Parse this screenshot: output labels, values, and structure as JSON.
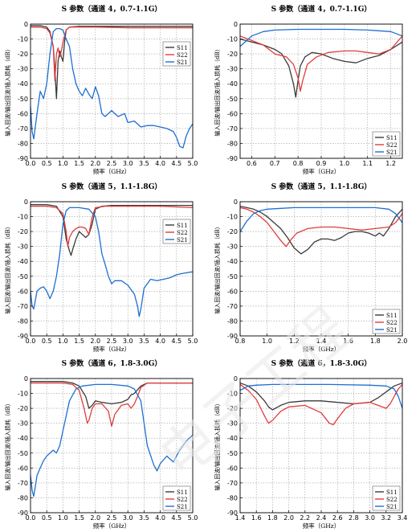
{
  "colors": {
    "S11": "#3a3a3a",
    "S22": "#e03c3c",
    "S21": "#1f6fd1",
    "grid": "#888888",
    "frame": "#000000"
  },
  "common": {
    "ylabel": "输入回波/输出回波/插入损耗（dB）",
    "xlabel": "频率（GHz）"
  },
  "watermark": "电子工程",
  "chart_data": [
    {
      "type": "line",
      "title": "S 参数（通道 4，0.7-1.1G）",
      "xlabel": "频率（GHz）",
      "ylabel": "输入回波/输出回波/插入损耗（dB）",
      "xlim": [
        0,
        5
      ],
      "ylim": [
        -90,
        0
      ],
      "xticks": [
        0,
        0.5,
        1,
        1.5,
        2,
        2.5,
        3,
        3.5,
        4,
        4.5,
        5
      ],
      "xtick_labels": [
        "0.0",
        "0.5",
        "1.0",
        "1.5",
        "2.0",
        "2.5",
        "3.0",
        "3.5",
        "4.0",
        "4.5",
        "5.0"
      ],
      "yticks": [
        -90,
        -80,
        -70,
        -60,
        -50,
        -40,
        -30,
        -20,
        -10,
        0
      ],
      "grid": true,
      "legend": "right",
      "series": [
        {
          "name": "S11",
          "x": [
            0,
            0.3,
            0.5,
            0.6,
            0.7,
            0.75,
            0.8,
            0.85,
            0.9,
            0.95,
            1.0,
            1.05,
            1.1,
            1.2,
            1.5,
            2,
            3,
            4,
            5
          ],
          "y": [
            -1,
            -1,
            -2,
            -5,
            -15,
            -30,
            -50,
            -25,
            -18,
            -22,
            -25,
            -12,
            -4,
            -2,
            -1.5,
            -1.5,
            -1.5,
            -1.5,
            -1.5
          ]
        },
        {
          "name": "S22",
          "x": [
            0,
            0.3,
            0.5,
            0.6,
            0.7,
            0.75,
            0.8,
            0.85,
            0.9,
            0.95,
            1.0,
            1.1,
            1.2,
            1.5,
            2,
            3,
            4,
            5
          ],
          "y": [
            -2,
            -2,
            -3,
            -6,
            -15,
            -38,
            -20,
            -16,
            -22,
            -18,
            -12,
            -4,
            -2,
            -2,
            -2,
            -2.5,
            -2.5,
            -2.5
          ]
        },
        {
          "name": "S21",
          "x": [
            0,
            0.05,
            0.1,
            0.2,
            0.3,
            0.4,
            0.5,
            0.6,
            0.7,
            0.8,
            0.9,
            1.0,
            1.1,
            1.2,
            1.3,
            1.4,
            1.5,
            1.6,
            1.7,
            1.8,
            1.9,
            2.0,
            2.1,
            2.2,
            2.3,
            2.5,
            2.7,
            2.9,
            3.0,
            3.2,
            3.4,
            3.6,
            3.8,
            4.0,
            4.2,
            4.4,
            4.5,
            4.6,
            4.7,
            4.8,
            4.9,
            5.0
          ],
          "y": [
            -55,
            -72,
            -77,
            -60,
            -45,
            -50,
            -40,
            -20,
            -5,
            -3,
            -3,
            -4,
            -10,
            -15,
            -30,
            -40,
            -45,
            -48,
            -43,
            -47,
            -50,
            -42,
            -48,
            -60,
            -62,
            -58,
            -62,
            -60,
            -66,
            -65,
            -69,
            -68,
            -68,
            -69,
            -70,
            -72,
            -76,
            -82,
            -83,
            -75,
            -70,
            -67
          ]
        }
      ]
    },
    {
      "type": "line",
      "title": "S 参数（通道 4，0.7-1.1G）",
      "xlabel": "频率（GHz）",
      "ylabel": "输入回波/输出回波/插入损耗（dB）",
      "xlim": [
        0.55,
        1.25
      ],
      "ylim": [
        -90,
        0
      ],
      "xticks": [
        0.6,
        0.7,
        0.8,
        0.9,
        1.0,
        1.1,
        1.2
      ],
      "xtick_labels": [
        "0.6",
        "0.7",
        "0.8",
        "0.9",
        "1.0",
        "1.1",
        "1.2"
      ],
      "yticks": [
        -90,
        -80,
        -70,
        -60,
        -50,
        -40,
        -30,
        -20,
        -10,
        0
      ],
      "grid": true,
      "legend": "bottom-right",
      "series": [
        {
          "name": "S11",
          "x": [
            0.55,
            0.6,
            0.65,
            0.7,
            0.73,
            0.76,
            0.78,
            0.79,
            0.8,
            0.81,
            0.83,
            0.86,
            0.9,
            0.95,
            1.0,
            1.05,
            1.1,
            1.15,
            1.2,
            1.25
          ],
          "y": [
            -10,
            -12,
            -14,
            -17,
            -20,
            -28,
            -40,
            -49,
            -38,
            -28,
            -22,
            -19,
            -20,
            -23,
            -25,
            -26,
            -23,
            -21,
            -17,
            -12
          ]
        },
        {
          "name": "S22",
          "x": [
            0.55,
            0.6,
            0.65,
            0.7,
            0.75,
            0.78,
            0.8,
            0.81,
            0.82,
            0.84,
            0.88,
            0.93,
            1.0,
            1.05,
            1.1,
            1.15,
            1.2,
            1.25
          ],
          "y": [
            -8,
            -11,
            -14,
            -20,
            -22,
            -27,
            -36,
            -45,
            -38,
            -27,
            -22,
            -19,
            -18,
            -18,
            -19,
            -20,
            -17,
            -8
          ]
        },
        {
          "name": "S21",
          "x": [
            0.55,
            0.6,
            0.65,
            0.7,
            0.8,
            0.9,
            1.0,
            1.1,
            1.15,
            1.2,
            1.25
          ],
          "y": [
            -15,
            -8,
            -5,
            -4,
            -3.5,
            -3.5,
            -3.5,
            -4,
            -4.5,
            -5,
            -8
          ]
        }
      ]
    },
    {
      "type": "line",
      "title": "S 参数（通道 5，1.1-1.8G）",
      "xlabel": "频率（GHz）",
      "ylabel": "输入回波/输出回波/插入损耗（dB）",
      "xlim": [
        0,
        5
      ],
      "ylim": [
        -90,
        0
      ],
      "xticks": [
        0,
        0.5,
        1,
        1.5,
        2,
        2.5,
        3,
        3.5,
        4,
        4.5,
        5
      ],
      "xtick_labels": [
        "0.0",
        "0.5",
        "1.0",
        "1.5",
        "2.0",
        "2.5",
        "3.0",
        "3.5",
        "4.0",
        "4.5",
        "5.0"
      ],
      "yticks": [
        -90,
        -80,
        -70,
        -60,
        -50,
        -40,
        -30,
        -20,
        -10,
        0
      ],
      "grid": true,
      "legend": "right",
      "series": [
        {
          "name": "S11",
          "x": [
            0,
            0.5,
            0.8,
            1.0,
            1.1,
            1.2,
            1.25,
            1.3,
            1.4,
            1.5,
            1.6,
            1.7,
            1.8,
            1.9,
            2.0,
            2.2,
            2.5,
            3,
            4,
            5
          ],
          "y": [
            -2,
            -2,
            -3,
            -10,
            -25,
            -33,
            -36,
            -32,
            -25,
            -20,
            -22,
            -24,
            -22,
            -15,
            -5,
            -3,
            -2.5,
            -2.5,
            -2.5,
            -2.5
          ]
        },
        {
          "name": "S22",
          "x": [
            0,
            0.5,
            0.8,
            1.0,
            1.1,
            1.15,
            1.2,
            1.3,
            1.4,
            1.5,
            1.6,
            1.7,
            1.8,
            1.9,
            2.0,
            2.3,
            2.5,
            3,
            4,
            5
          ],
          "y": [
            -3,
            -3,
            -4,
            -8,
            -20,
            -30,
            -24,
            -20,
            -18,
            -17,
            -17,
            -18,
            -22,
            -10,
            -4,
            -3,
            -3,
            -3,
            -3,
            -4
          ]
        },
        {
          "name": "S21",
          "x": [
            0,
            0.05,
            0.1,
            0.2,
            0.3,
            0.4,
            0.5,
            0.6,
            0.7,
            0.8,
            0.9,
            1.0,
            1.1,
            1.2,
            1.5,
            1.8,
            2.0,
            2.1,
            2.2,
            2.3,
            2.4,
            2.5,
            2.6,
            2.8,
            3.0,
            3.2,
            3.3,
            3.35,
            3.4,
            3.5,
            3.7,
            3.9,
            4.1,
            4.3,
            4.5,
            4.7,
            5.0
          ],
          "y": [
            -60,
            -70,
            -72,
            -60,
            -58,
            -57,
            -60,
            -65,
            -60,
            -50,
            -35,
            -15,
            -6,
            -4,
            -4,
            -5,
            -10,
            -20,
            -35,
            -42,
            -50,
            -55,
            -53,
            -53,
            -56,
            -62,
            -70,
            -77,
            -72,
            -58,
            -52,
            -53,
            -52,
            -51,
            -49,
            -48,
            -47
          ]
        }
      ]
    },
    {
      "type": "line",
      "title": "S 参数（通道 5，1.1-1.8G）",
      "xlabel": "频率（GHz）",
      "ylabel": "输入回波/输出回波/插入损耗（dB）",
      "xlim": [
        0.8,
        2.0
      ],
      "ylim": [
        -90,
        0
      ],
      "xticks": [
        0.8,
        1.0,
        1.2,
        1.4,
        1.6,
        1.8,
        2.0
      ],
      "xtick_labels": [
        "0.8",
        "1.0",
        "1.2",
        "1.4",
        "1.6",
        "1.8",
        "2.0"
      ],
      "yticks": [
        -90,
        -80,
        -70,
        -60,
        -50,
        -40,
        -30,
        -20,
        -10,
        0
      ],
      "grid": true,
      "legend": "bottom-right",
      "series": [
        {
          "name": "S11",
          "x": [
            0.8,
            0.85,
            0.9,
            0.95,
            1.0,
            1.05,
            1.1,
            1.15,
            1.2,
            1.25,
            1.3,
            1.35,
            1.4,
            1.45,
            1.5,
            1.55,
            1.6,
            1.65,
            1.7,
            1.75,
            1.8,
            1.83,
            1.86,
            1.9,
            1.95,
            2.0
          ],
          "y": [
            -3,
            -4,
            -5,
            -7,
            -10,
            -14,
            -18,
            -24,
            -31,
            -35,
            -32,
            -27,
            -25,
            -25,
            -26,
            -24,
            -21,
            -20,
            -20,
            -21,
            -23,
            -21,
            -23,
            -18,
            -10,
            -5
          ]
        },
        {
          "name": "S22",
          "x": [
            0.8,
            0.85,
            0.9,
            0.95,
            1.0,
            1.05,
            1.1,
            1.14,
            1.18,
            1.22,
            1.3,
            1.4,
            1.5,
            1.6,
            1.7,
            1.8,
            1.9,
            1.95,
            2.0
          ],
          "y": [
            -4,
            -5,
            -7,
            -10,
            -14,
            -20,
            -26,
            -30,
            -25,
            -21,
            -18,
            -17,
            -17,
            -18,
            -19,
            -18,
            -17,
            -14,
            -8
          ]
        },
        {
          "name": "S21",
          "x": [
            0.8,
            0.85,
            0.9,
            0.95,
            1.0,
            1.1,
            1.2,
            1.4,
            1.6,
            1.8,
            1.9,
            1.95,
            2.0
          ],
          "y": [
            -20,
            -13,
            -8,
            -6,
            -5,
            -4.5,
            -4,
            -4,
            -4,
            -4,
            -5,
            -8,
            -14
          ]
        }
      ]
    },
    {
      "type": "line",
      "title": "S 参数（通道 6，1.8-3.0G）",
      "xlabel": "频率（GHz）",
      "ylabel": "输入回波/输出回波/插入损耗（dB）",
      "xlim": [
        0,
        5
      ],
      "ylim": [
        -90,
        0
      ],
      "xticks": [
        0,
        0.5,
        1,
        1.5,
        2,
        2.5,
        3,
        3.5,
        4,
        4.5,
        5
      ],
      "xtick_labels": [
        "0.0",
        "0.5",
        "1.0",
        "1.5",
        "2.0",
        "2.5",
        "3.0",
        "3.5",
        "4.0",
        "4.5",
        "5.0"
      ],
      "yticks": [
        -90,
        -80,
        -70,
        -60,
        -50,
        -40,
        -30,
        -20,
        -10,
        0
      ],
      "grid": true,
      "legend": "bottom-right",
      "series": [
        {
          "name": "S11",
          "x": [
            0,
            0.5,
            1.0,
            1.3,
            1.5,
            1.7,
            1.8,
            1.9,
            2.0,
            2.2,
            2.5,
            2.8,
            3.0,
            3.1,
            3.2,
            3.4,
            3.6,
            4,
            5
          ],
          "y": [
            -2,
            -2,
            -2,
            -3,
            -5,
            -12,
            -20,
            -18,
            -15,
            -16,
            -17,
            -16,
            -14,
            -11,
            -10,
            -5,
            -3,
            -3,
            -3
          ]
        },
        {
          "name": "S22",
          "x": [
            0,
            0.5,
            1.0,
            1.3,
            1.5,
            1.65,
            1.75,
            1.8,
            1.9,
            2.0,
            2.2,
            2.4,
            2.5,
            2.6,
            2.8,
            3.0,
            3.1,
            3.2,
            3.3,
            3.4,
            3.6,
            4,
            5
          ],
          "y": [
            -3,
            -3,
            -3,
            -4,
            -8,
            -20,
            -30,
            -28,
            -20,
            -17,
            -17,
            -22,
            -32,
            -24,
            -18,
            -17,
            -20,
            -17,
            -12,
            -6,
            -3,
            -3,
            -3
          ]
        },
        {
          "name": "S21",
          "x": [
            0,
            0.05,
            0.1,
            0.15,
            0.2,
            0.3,
            0.4,
            0.5,
            0.6,
            0.7,
            0.8,
            0.9,
            1.0,
            1.2,
            1.4,
            1.6,
            2.0,
            2.5,
            3.0,
            3.2,
            3.4,
            3.5,
            3.6,
            3.8,
            3.9,
            4.0,
            4.2,
            4.4,
            4.6,
            4.8,
            5.0
          ],
          "y": [
            -65,
            -75,
            -79,
            -72,
            -65,
            -60,
            -55,
            -52,
            -50,
            -48,
            -50,
            -45,
            -35,
            -15,
            -7,
            -5,
            -4,
            -4,
            -5,
            -7,
            -15,
            -30,
            -45,
            -58,
            -62,
            -57,
            -52,
            -56,
            -48,
            -42,
            -38
          ]
        }
      ]
    },
    {
      "type": "line",
      "title": "S 参数（通道 6，1.8-3.0G）",
      "xlabel": "频率（GHz）",
      "ylabel": "输入回波/输出回波/插入损耗（dB）",
      "xlim": [
        1.4,
        3.4
      ],
      "ylim": [
        -90,
        0
      ],
      "xticks": [
        1.4,
        1.6,
        1.8,
        2.0,
        2.2,
        2.4,
        2.6,
        2.8,
        3.0,
        3.2,
        3.4
      ],
      "xtick_labels": [
        "1.4",
        "1.6",
        "1.8",
        "2.0",
        "2.2",
        "2.4",
        "2.6",
        "2.8",
        "3.0",
        "3.2",
        "3.4"
      ],
      "yticks": [
        -90,
        -80,
        -70,
        -60,
        -50,
        -40,
        -30,
        -20,
        -10,
        0
      ],
      "grid": true,
      "legend": "bottom-right",
      "series": [
        {
          "name": "S11",
          "x": [
            1.4,
            1.5,
            1.6,
            1.7,
            1.75,
            1.8,
            1.9,
            2.0,
            2.2,
            2.4,
            2.6,
            2.8,
            3.0,
            3.1,
            3.2,
            3.3,
            3.4
          ],
          "y": [
            -3,
            -5,
            -9,
            -15,
            -19,
            -21,
            -18,
            -16,
            -15,
            -15,
            -16,
            -17,
            -16,
            -13,
            -9,
            -5,
            -3
          ]
        },
        {
          "name": "S22",
          "x": [
            1.4,
            1.5,
            1.6,
            1.7,
            1.75,
            1.8,
            1.9,
            2.0,
            2.2,
            2.4,
            2.5,
            2.55,
            2.6,
            2.7,
            2.8,
            3.0,
            3.1,
            3.2,
            3.25,
            3.3,
            3.35,
            3.4
          ],
          "y": [
            -4,
            -8,
            -14,
            -25,
            -30,
            -28,
            -22,
            -19,
            -18,
            -23,
            -30,
            -31,
            -27,
            -20,
            -17,
            -16,
            -18,
            -20,
            -17,
            -12,
            -7,
            -4
          ]
        },
        {
          "name": "S21",
          "x": [
            1.4,
            1.5,
            1.6,
            1.8,
            2.0,
            2.5,
            3.0,
            3.2,
            3.3,
            3.35,
            3.4
          ],
          "y": [
            -8,
            -5,
            -4.5,
            -4,
            -4,
            -4,
            -4.5,
            -5,
            -7,
            -12,
            -20
          ]
        }
      ]
    }
  ]
}
